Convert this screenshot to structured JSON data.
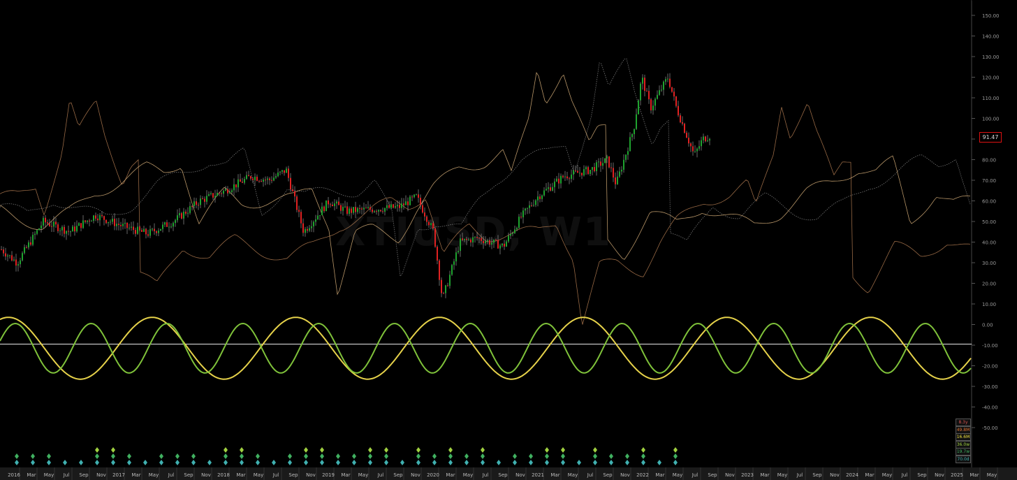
{
  "chart_data": {
    "type": "line",
    "symbol": "XTIUSD, W1",
    "last_price": "91.47",
    "y_axis": {
      "ticks": [
        "150.00",
        "140.00",
        "130.00",
        "120.00",
        "110.00",
        "100.00",
        "90.00",
        "80.00",
        "70.00",
        "60.00",
        "50.00",
        "40.00",
        "30.00",
        "20.00",
        "10.00",
        "0.00",
        "-10.00",
        "-20.00",
        "-30.00",
        "-40.00",
        "-50.00"
      ],
      "ylim": [
        -50,
        150
      ]
    },
    "x_axis": {
      "ticks": [
        "2016",
        "Mar",
        "May",
        "Jul",
        "Sep",
        "Nov",
        "2017",
        "Mar",
        "May",
        "Jul",
        "Sep",
        "Nov",
        "2018",
        "Mar",
        "May",
        "Jul",
        "Sep",
        "Nov",
        "2019",
        "Mar",
        "May",
        "Jul",
        "Sep",
        "Nov",
        "2020",
        "Mar",
        "May",
        "Jul",
        "Sep",
        "Nov",
        "2021",
        "Mar",
        "May",
        "Jul",
        "Sep",
        "Nov",
        "2022",
        "Mar",
        "May",
        "Jul",
        "Sep",
        "Nov",
        "2023",
        "Mar",
        "May",
        "Jul",
        "Sep",
        "Nov",
        "2024",
        "Mar",
        "May",
        "Jul",
        "Sep",
        "Nov",
        "2025",
        "Mar",
        "May"
      ],
      "range": [
        "2016-01",
        "2025-05"
      ]
    },
    "price_series": {
      "name": "XTIUSD",
      "x": [
        "2016-01",
        "2016-03",
        "2016-06",
        "2016-09",
        "2016-12",
        "2017-03",
        "2017-06",
        "2017-09",
        "2017-12",
        "2018-03",
        "2018-06",
        "2018-08",
        "2018-10",
        "2018-12",
        "2019-03",
        "2019-05",
        "2019-08",
        "2019-11",
        "2020-01",
        "2020-03",
        "2020-04",
        "2020-06",
        "2020-08",
        "2020-11",
        "2021-01",
        "2021-03",
        "2021-06",
        "2021-09",
        "2021-11",
        "2021-12",
        "2022-02",
        "2022-03",
        "2022-04",
        "2022-06",
        "2022-07",
        "2022-09",
        "2022-10",
        "2022-11"
      ],
      "y": [
        37,
        30,
        50,
        45,
        53,
        48,
        44,
        50,
        60,
        65,
        72,
        70,
        75,
        45,
        60,
        55,
        56,
        57,
        62,
        45,
        12,
        40,
        42,
        38,
        52,
        62,
        72,
        75,
        80,
        68,
        95,
        120,
        105,
        120,
        105,
        82,
        90,
        92
      ]
    },
    "overlay_series": [
      {
        "color": "#8a8a8a"
      },
      {
        "color": "#b07a50"
      },
      {
        "color": "#d8b07a"
      }
    ],
    "oscillators": [
      {
        "color": "#e6d24a",
        "period_weeks": 72,
        "amplitude": 15,
        "phase": 1.2
      },
      {
        "color": "#7fc23a",
        "period_weeks": 38,
        "amplitude": 12,
        "phase": 0.3
      }
    ],
    "zero_line": -9.5,
    "cycle_labels": [
      {
        "text": "8.3y",
        "color": "#d9534f"
      },
      {
        "text": "49.8M",
        "color": "#e07030"
      },
      {
        "text": "16.6M",
        "color": "#f0e040"
      },
      {
        "text": "36.0w",
        "color": "#a0d040"
      },
      {
        "text": "19.7w",
        "color": "#40b060"
      },
      {
        "text": "70.0d",
        "color": "#40b0b0"
      }
    ],
    "up_candle_color": "#1fa32f",
    "down_candle_color": "#e02222"
  }
}
